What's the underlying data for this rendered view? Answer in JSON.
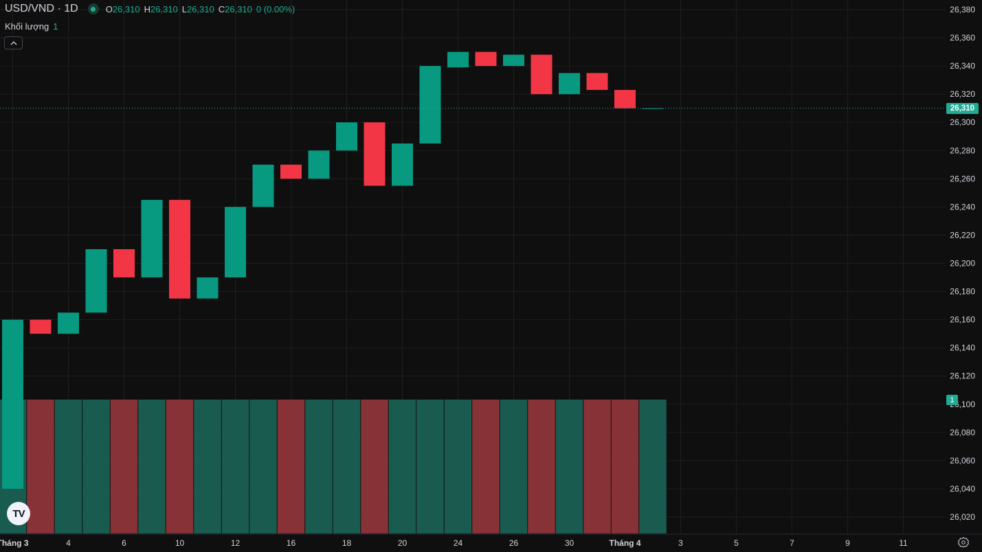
{
  "legend": {
    "symbol": "USD/VND · 1D",
    "o_label": "O",
    "o_value": "26,310",
    "h_label": "H",
    "h_value": "26,310",
    "l_label": "L",
    "l_value": "26,310",
    "c_label": "C",
    "c_value": "26,310",
    "change": "0 (0.00%)"
  },
  "volume_legend": {
    "label": "Khối lượng",
    "value": "1"
  },
  "collapse_icon": "chevron-up-icon",
  "logo": {
    "text": "TV"
  },
  "settings_icon": "gear-icon",
  "current_price_label": "26,310",
  "volume_badge_label": "1",
  "colors": {
    "up": "#089981",
    "down": "#f23645",
    "volume_up": "#1a5b50",
    "volume_down": "#873237",
    "background": "#0f0f0f",
    "grid": "#1f1f1f",
    "text": "#d1d4dc"
  },
  "chart_data": {
    "type": "candlestick",
    "y_ticks": [
      "26,020",
      "26,040",
      "26,060",
      "26,080",
      "26,100",
      "26,120",
      "26,140",
      "26,160",
      "26,180",
      "26,200",
      "26,220",
      "26,240",
      "26,260",
      "26,280",
      "26,300",
      "26,320",
      "26,340",
      "26,360",
      "26,380"
    ],
    "x_ticks": [
      {
        "label": "Tháng 3",
        "slot": 0,
        "bold": true
      },
      {
        "label": "4",
        "slot": 2
      },
      {
        "label": "6",
        "slot": 4
      },
      {
        "label": "10",
        "slot": 6
      },
      {
        "label": "12",
        "slot": 8
      },
      {
        "label": "16",
        "slot": 10
      },
      {
        "label": "18",
        "slot": 12
      },
      {
        "label": "20",
        "slot": 14
      },
      {
        "label": "24",
        "slot": 16
      },
      {
        "label": "26",
        "slot": 18
      },
      {
        "label": "30",
        "slot": 20
      },
      {
        "label": "Tháng 4",
        "slot": 22,
        "bold": true
      },
      {
        "label": "3",
        "slot": 24
      },
      {
        "label": "5",
        "slot": 26
      },
      {
        "label": "7",
        "slot": 28
      },
      {
        "label": "9",
        "slot": 30
      },
      {
        "label": "11",
        "slot": 32
      }
    ],
    "candles": [
      {
        "o": 26040,
        "c": 26160,
        "dir": "up",
        "vol": 1
      },
      {
        "o": 26160,
        "c": 26150,
        "dir": "down",
        "vol": 1
      },
      {
        "o": 26150,
        "c": 26165,
        "dir": "up",
        "vol": 1
      },
      {
        "o": 26165,
        "c": 26210,
        "dir": "up",
        "vol": 1
      },
      {
        "o": 26210,
        "c": 26190,
        "dir": "down",
        "vol": 1
      },
      {
        "o": 26190,
        "c": 26245,
        "dir": "up",
        "vol": 1
      },
      {
        "o": 26245,
        "c": 26175,
        "dir": "down",
        "vol": 1
      },
      {
        "o": 26175,
        "c": 26190,
        "dir": "up",
        "vol": 1
      },
      {
        "o": 26190,
        "c": 26240,
        "dir": "up",
        "vol": 1
      },
      {
        "o": 26240,
        "c": 26270,
        "dir": "up",
        "vol": 1
      },
      {
        "o": 26270,
        "c": 26260,
        "dir": "down",
        "vol": 1
      },
      {
        "o": 26260,
        "c": 26280,
        "dir": "up",
        "vol": 1
      },
      {
        "o": 26280,
        "c": 26300,
        "dir": "up",
        "vol": 1
      },
      {
        "o": 26300,
        "c": 26255,
        "dir": "down",
        "vol": 1
      },
      {
        "o": 26255,
        "c": 26285,
        "dir": "up",
        "vol": 1
      },
      {
        "o": 26285,
        "c": 26340,
        "dir": "up",
        "vol": 1
      },
      {
        "o": 26339,
        "c": 26350,
        "dir": "up",
        "vol": 1
      },
      {
        "o": 26350,
        "c": 26340,
        "dir": "down",
        "vol": 1
      },
      {
        "o": 26340,
        "c": 26348,
        "dir": "up",
        "vol": 1
      },
      {
        "o": 26348,
        "c": 26320,
        "dir": "down",
        "vol": 1
      },
      {
        "o": 26320,
        "c": 26335,
        "dir": "up",
        "vol": 1
      },
      {
        "o": 26335,
        "c": 26323,
        "dir": "down",
        "vol": 1
      },
      {
        "o": 26323,
        "c": 26310,
        "dir": "down",
        "vol": 1
      },
      {
        "o": 26310,
        "c": 26310,
        "dir": "up",
        "vol": 1
      }
    ]
  }
}
